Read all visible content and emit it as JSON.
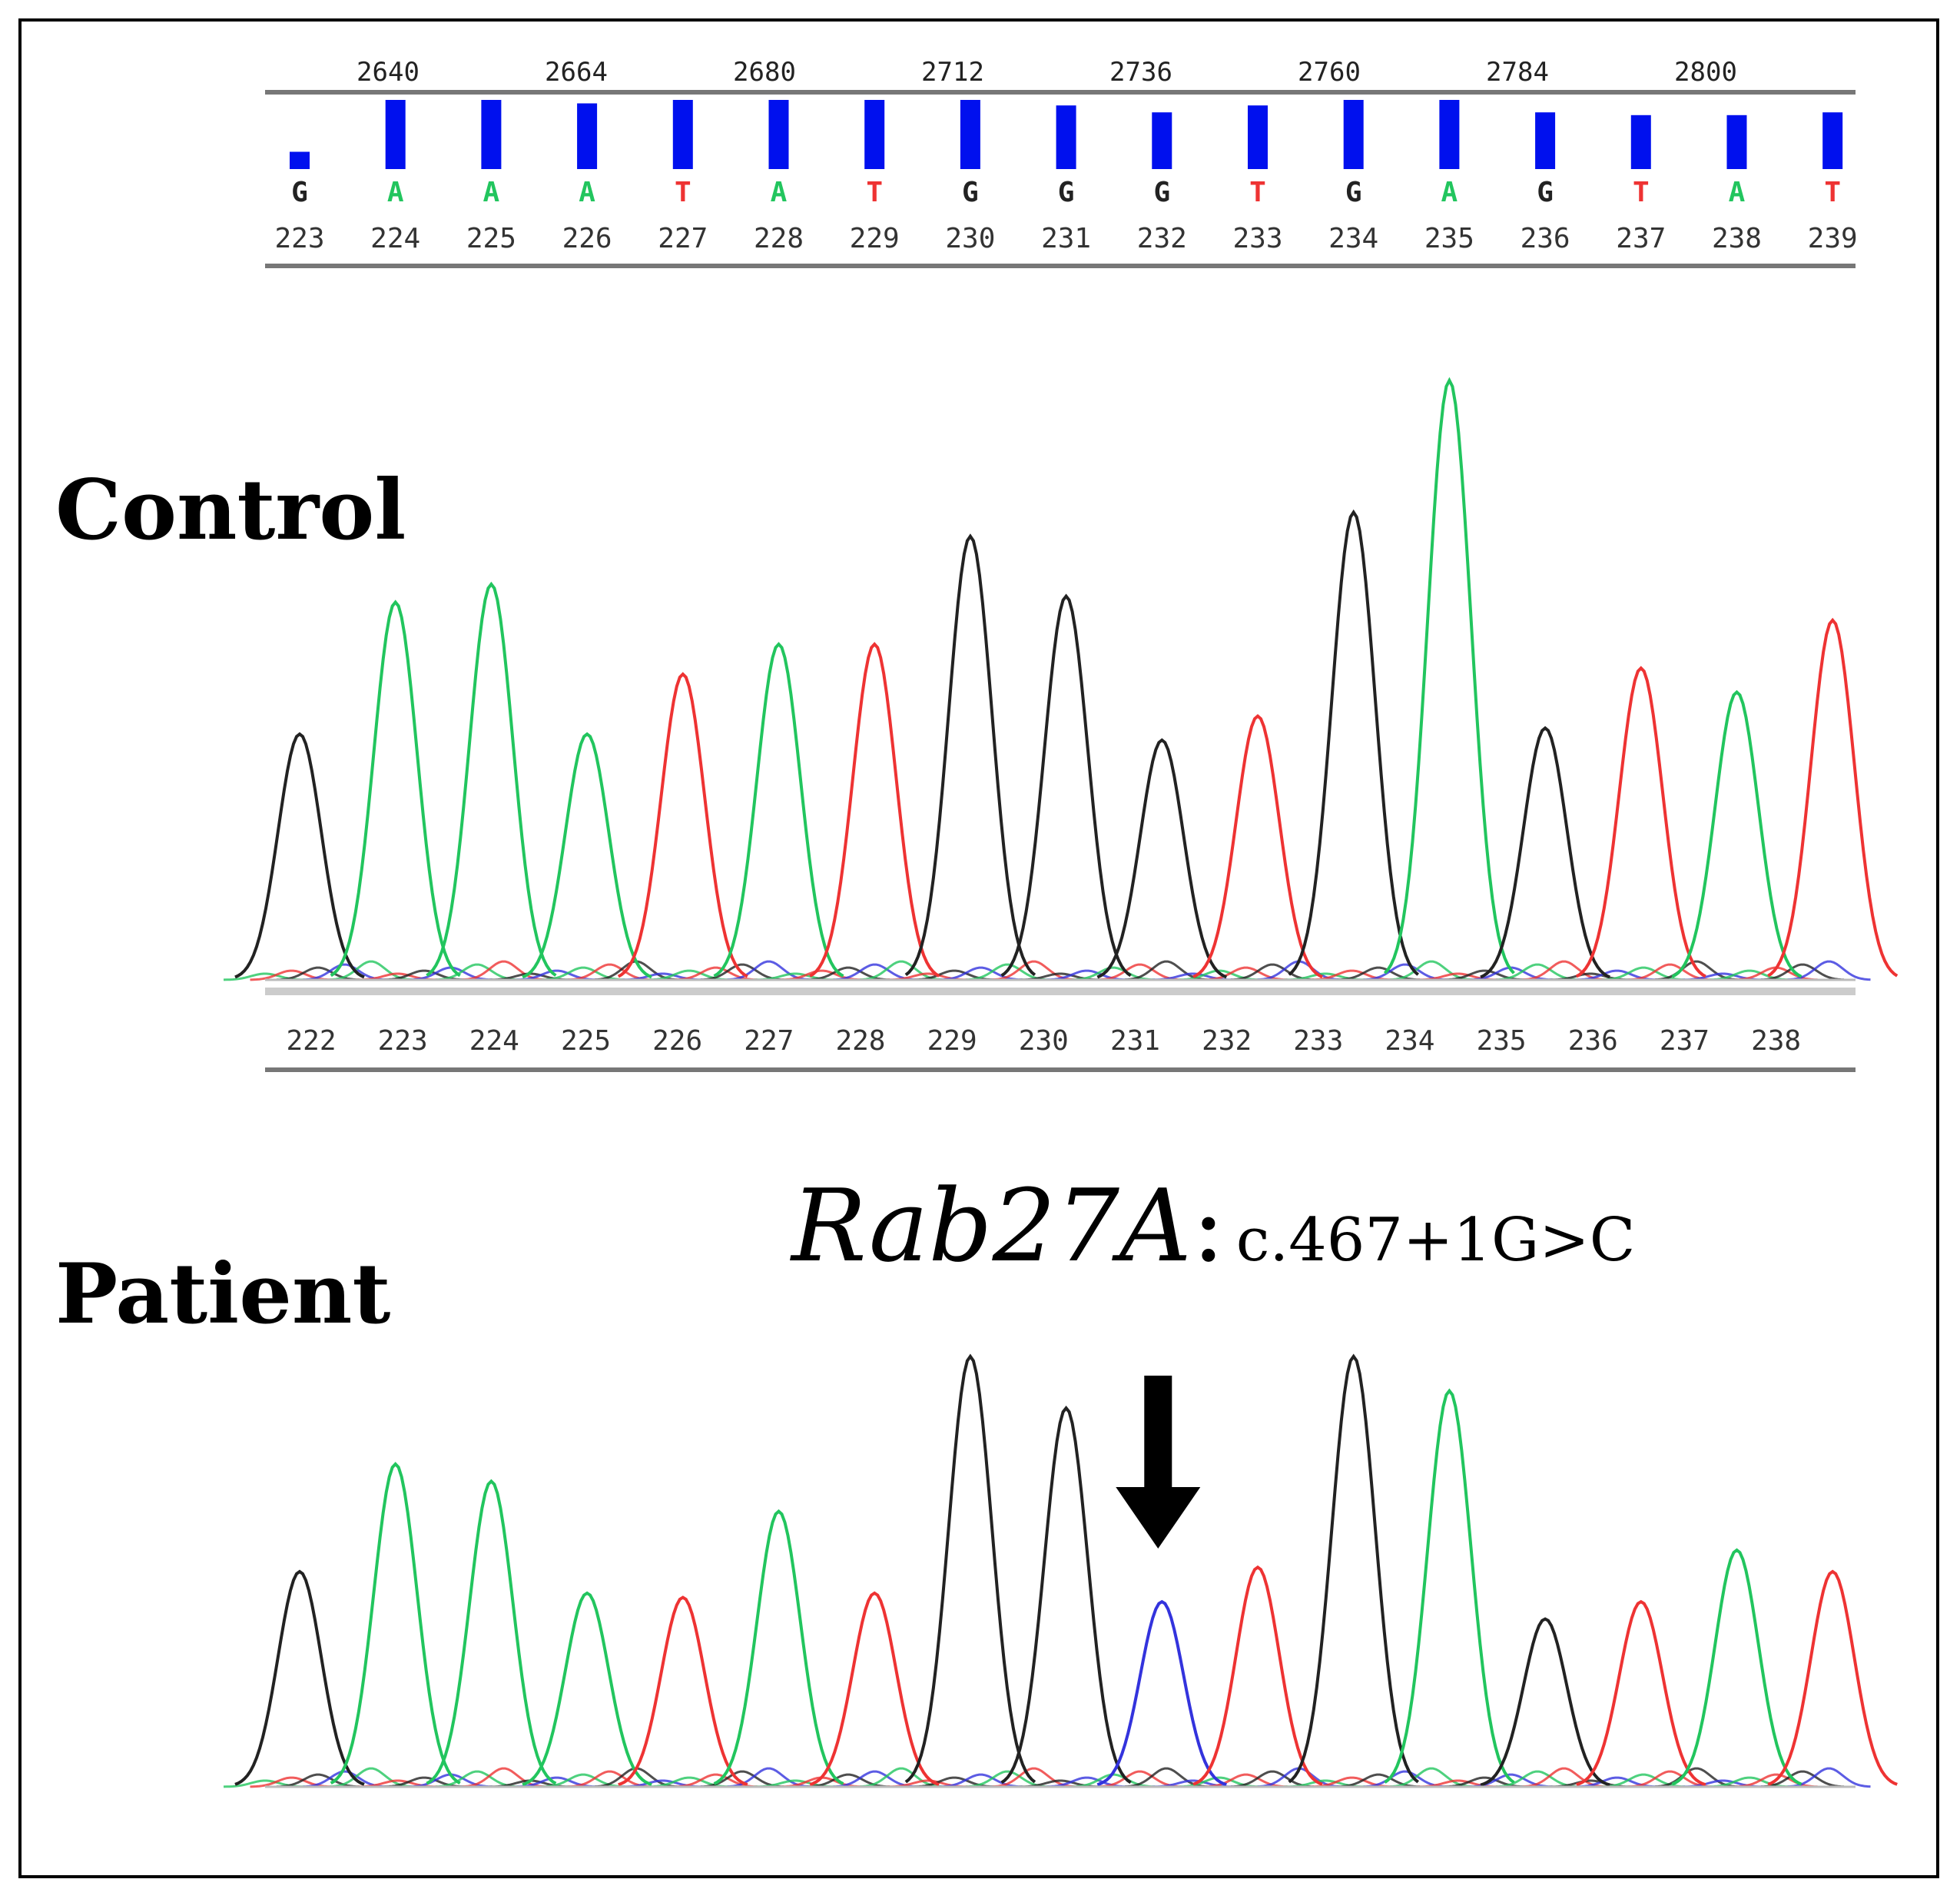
{
  "labels": {
    "control": "Control",
    "patient": "Patient",
    "mutation_gene": "Rab27A",
    "mutation_sep": ":",
    "mutation_variant": "c.467+1G>C"
  },
  "colors": {
    "A": "#22c55e",
    "T": "#ee3333",
    "G": "#222222",
    "C": "#3333dd",
    "bar": "#0010ee",
    "axis": "#777777"
  },
  "chart_data": [
    {
      "type": "line",
      "name": "control_chromatogram",
      "top_ruler_ticks": [
        "2640",
        "2664",
        "2680",
        "2712",
        "2736",
        "2760",
        "2784",
        "2800"
      ],
      "quality_bars": [
        0.25,
        1.0,
        1.0,
        0.95,
        1.0,
        1.0,
        1.0,
        1.0,
        0.92,
        0.82,
        0.92,
        1.0,
        1.0,
        0.82,
        0.78,
        0.78,
        0.82
      ],
      "base_calls": [
        "G",
        "A",
        "A",
        "A",
        "T",
        "A",
        "T",
        "G",
        "G",
        "G",
        "T",
        "G",
        "A",
        "G",
        "T",
        "A",
        "T"
      ],
      "base_numbers": [
        "223",
        "224",
        "225",
        "226",
        "227",
        "228",
        "229",
        "230",
        "231",
        "232",
        "233",
        "234",
        "235",
        "236",
        "237",
        "238",
        "239"
      ],
      "bottom_numbers": [
        "222",
        "223",
        "224",
        "225",
        "226",
        "227",
        "228",
        "229",
        "230",
        "231",
        "232",
        "233",
        "234",
        "235",
        "236",
        "237",
        "238"
      ],
      "peaks": [
        {
          "base": "G",
          "height": 0.41
        },
        {
          "base": "A",
          "height": 0.63
        },
        {
          "base": "A",
          "height": 0.66
        },
        {
          "base": "A",
          "height": 0.41
        },
        {
          "base": "T",
          "height": 0.51
        },
        {
          "base": "A",
          "height": 0.56
        },
        {
          "base": "T",
          "height": 0.56
        },
        {
          "base": "G",
          "height": 0.74
        },
        {
          "base": "G",
          "height": 0.64
        },
        {
          "base": "G",
          "height": 0.4
        },
        {
          "base": "T",
          "height": 0.44
        },
        {
          "base": "G",
          "height": 0.78
        },
        {
          "base": "A",
          "height": 1.0
        },
        {
          "base": "G",
          "height": 0.42
        },
        {
          "base": "T",
          "height": 0.52
        },
        {
          "base": "A",
          "height": 0.48
        },
        {
          "base": "T",
          "height": 0.6
        }
      ]
    },
    {
      "type": "line",
      "name": "patient_chromatogram",
      "annotation": "arrow marks mutated base (G>C)",
      "peaks": [
        {
          "base": "G",
          "height": 0.5
        },
        {
          "base": "A",
          "height": 0.75
        },
        {
          "base": "A",
          "height": 0.71
        },
        {
          "base": "A",
          "height": 0.45
        },
        {
          "base": "T",
          "height": 0.44
        },
        {
          "base": "A",
          "height": 0.64
        },
        {
          "base": "T",
          "height": 0.45
        },
        {
          "base": "G",
          "height": 1.0
        },
        {
          "base": "G",
          "height": 0.88
        },
        {
          "base": "C",
          "height": 0.43
        },
        {
          "base": "T",
          "height": 0.51
        },
        {
          "base": "G",
          "height": 1.0
        },
        {
          "base": "A",
          "height": 0.92
        },
        {
          "base": "G",
          "height": 0.39
        },
        {
          "base": "T",
          "height": 0.43
        },
        {
          "base": "A",
          "height": 0.55
        },
        {
          "base": "T",
          "height": 0.5
        }
      ]
    }
  ]
}
